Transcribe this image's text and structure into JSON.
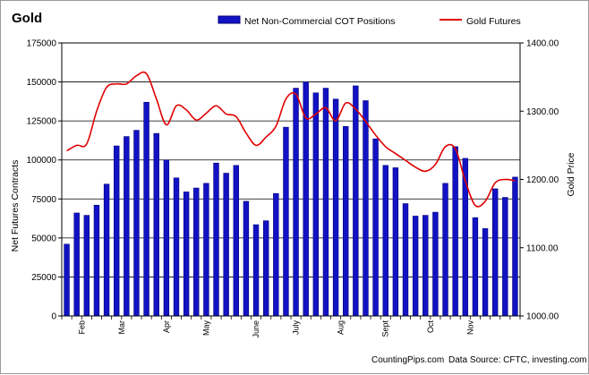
{
  "colors": {
    "bars": "#1212c4",
    "bar_edge": "#00007a",
    "line": "#e00000",
    "grid": "#000000"
  },
  "footer": {
    "source": "CountingPips.com",
    "data_source": "Data Source:  CFTC, investing.com"
  },
  "chart_data": {
    "type": "bar",
    "title": "Gold",
    "ylabel": "Net Futures Contracts",
    "y2label": "Gold Price",
    "ylim": [
      0,
      175000
    ],
    "y2lim": [
      1000,
      1400
    ],
    "yticks": [
      "0",
      "25000",
      "50000",
      "75000",
      "100000",
      "125000",
      "150000",
      "175000"
    ],
    "y2ticks": [
      "1000.00",
      "1100.00",
      "1200.00",
      "1300.00",
      "1400.00"
    ],
    "grid": true,
    "legend_position": "top",
    "month_labels": [
      "Feb",
      "Mar",
      "Apr",
      "May",
      "June",
      "July",
      "Aug",
      "Sept",
      "Oct",
      "Nov"
    ],
    "month_positions": [
      2,
      6,
      10.5,
      14.5,
      19.5,
      23.5,
      28,
      32.5,
      37,
      41
    ],
    "series": [
      {
        "name": "Net Non-Commercial COT Positions",
        "kind": "bar",
        "values": [
          46000,
          66000,
          64500,
          71000,
          84500,
          109000,
          115000,
          119000,
          137000,
          117000,
          100000,
          88500,
          79500,
          82000,
          85000,
          98000,
          91500,
          96500,
          73500,
          58500,
          61000,
          78500,
          121000,
          146000,
          150000,
          143000,
          146000,
          139000,
          121500,
          147500,
          138000,
          113500,
          96500,
          95000,
          72000,
          64000,
          64500,
          66500,
          85000,
          108500,
          101000,
          63000,
          56000,
          81500,
          76000,
          89000
        ]
      },
      {
        "name": "Gold Futures",
        "kind": "line",
        "axis": "right",
        "values": [
          1242,
          1250,
          1252,
          1300,
          1335,
          1340,
          1340,
          1352,
          1355,
          1318,
          1280,
          1308,
          1302,
          1287,
          1297,
          1308,
          1296,
          1292,
          1268,
          1250,
          1262,
          1278,
          1318,
          1325,
          1290,
          1296,
          1305,
          1286,
          1312,
          1303,
          1285,
          1265,
          1248,
          1238,
          1228,
          1218,
          1212,
          1222,
          1248,
          1245,
          1198,
          1162,
          1168,
          1195,
          1200,
          1198
        ]
      }
    ]
  }
}
